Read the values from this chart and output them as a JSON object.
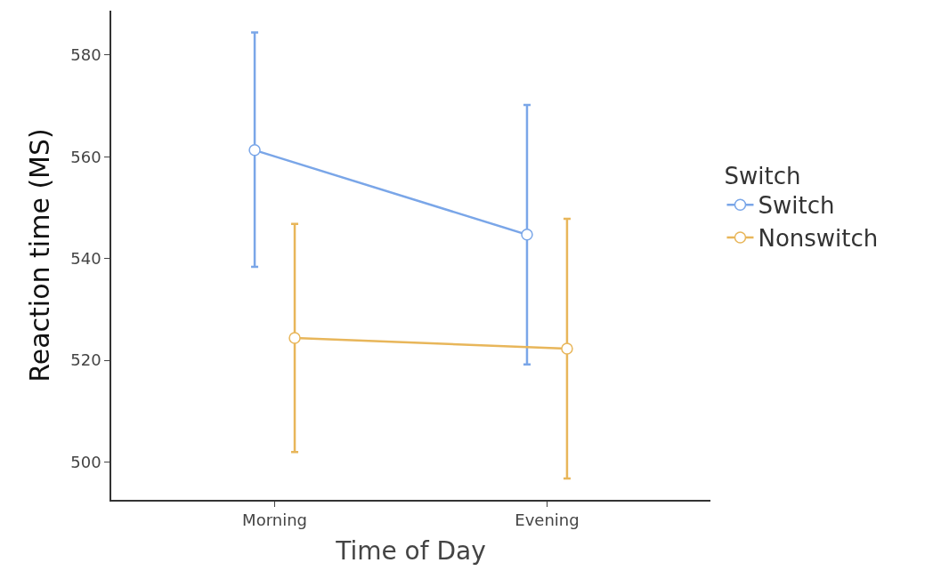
{
  "chart_data": {
    "type": "line",
    "xlabel": "Time of Day",
    "ylabel": "Reaction time (MS)",
    "legend_title": "Switch",
    "categories": [
      "Morning",
      "Evening"
    ],
    "series": [
      {
        "name": "Switch",
        "color": "#7aa6e8",
        "values": [
          561.3,
          544.7
        ],
        "errors": [
          [
            538.4,
            584.4
          ],
          [
            519.2,
            570.2
          ]
        ]
      },
      {
        "name": "Nonswitch",
        "color": "#e8b65a",
        "values": [
          524.4,
          522.3
        ],
        "errors": [
          [
            502.0,
            546.8
          ],
          [
            496.8,
            547.8
          ]
        ]
      }
    ],
    "ylim": [
      492.6,
      588.7
    ],
    "yticks": [
      500,
      520,
      540,
      560,
      580
    ],
    "legend": "right",
    "marker": "circle",
    "line_style": "solid"
  }
}
